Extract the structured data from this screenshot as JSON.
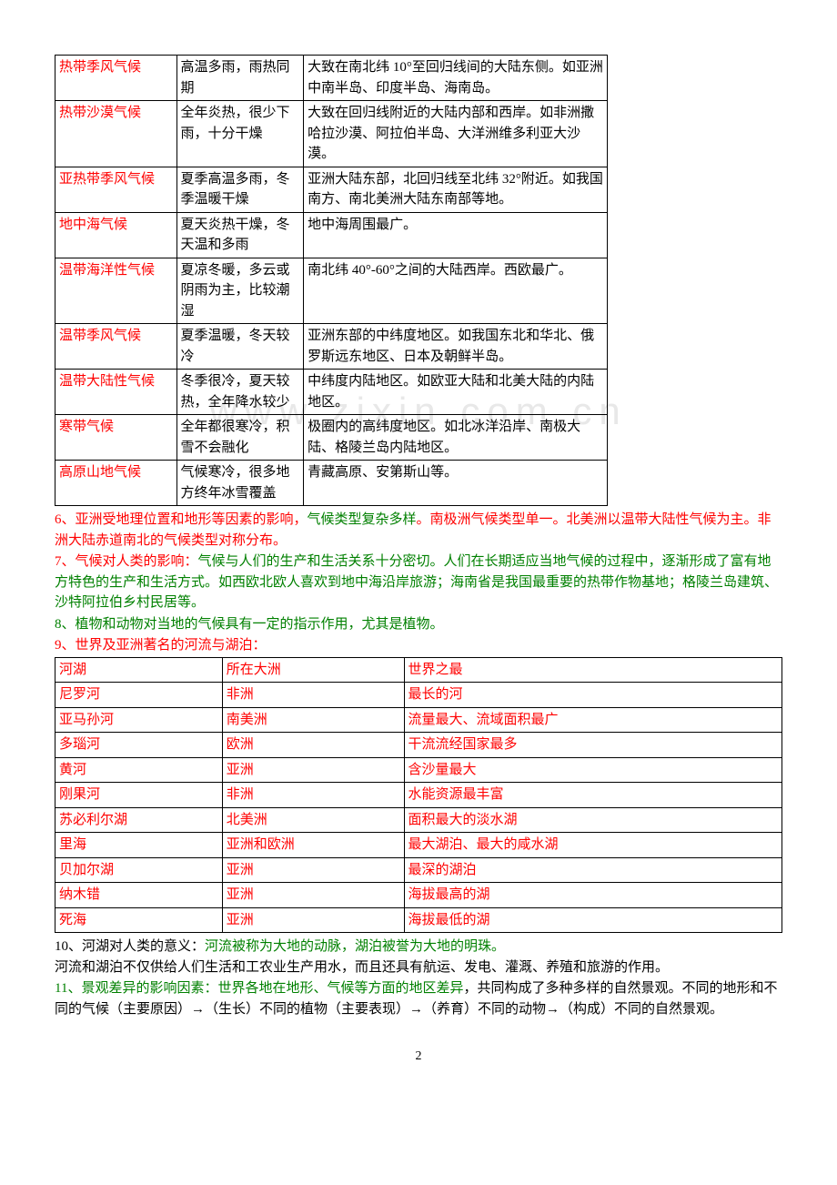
{
  "watermark": "www.zixin.com.cn",
  "table1": {
    "rows": [
      {
        "c1": "热带季风气候",
        "c1_color": "red",
        "c2": "高温多雨，雨热同期",
        "c3": "大致在南北纬 10°至回归线间的大陆东侧。如亚洲中南半岛、印度半岛、海南岛。"
      },
      {
        "c1": "热带沙漠气候",
        "c1_color": "red",
        "c2": "全年炎热，很少下雨，十分干燥",
        "c3": "大致在回归线附近的大陆内部和西岸。如非洲撒哈拉沙漠、阿拉伯半岛、大洋洲维多利亚大沙漠。"
      },
      {
        "c1": "亚热带季风气候",
        "c1_color": "red",
        "c2": "夏季高温多雨，冬季温暖干燥",
        "c3": "亚洲大陆东部，北回归线至北纬 32°附近。如我国南方、南北美洲大陆东南部等地。"
      },
      {
        "c1": "地中海气候",
        "c1_color": "red",
        "c2": "夏天炎热干燥，冬天温和多雨",
        "c3": "地中海周围最广。"
      },
      {
        "c1": "温带海洋性气候",
        "c1_color": "red",
        "c2": "夏凉冬暖，多云或阴雨为主，比较潮湿",
        "c3": "南北纬 40°-60°之间的大陆西岸。西欧最广。"
      },
      {
        "c1": "温带季风气候",
        "c1_color": "red",
        "c2": "夏季温暖，冬天较冷",
        "c3": "亚洲东部的中纬度地区。如我国东北和华北、俄罗斯远东地区、日本及朝鲜半岛。"
      },
      {
        "c1": "温带大陆性气候",
        "c1_color": "red",
        "c2": "冬季很冷，夏天较热，全年降水较少",
        "c3": "中纬度内陆地区。如欧亚大陆和北美大陆的内陆地区。"
      },
      {
        "c1": "寒带气候",
        "c1_color": "red",
        "c2": "全年都很寒冷，积雪不会融化",
        "c3": "极圈内的高纬度地区。如北冰洋沿岸、南极大陆、格陵兰岛内陆地区。"
      },
      {
        "c1": "高原山地气候",
        "c1_color": "red",
        "c2": "气候寒冷，很多地方终年冰雪覆盖",
        "c3": "青藏高原、安第斯山等。"
      }
    ]
  },
  "para6": {
    "prefix": "6、亚洲受地理位置和地形等因素的影响，",
    "mid": "气候类型复杂多样",
    "suffix": "。南极洲气候类型单一。北美洲以温带大陆性气候为主。非洲大陆赤道南北的气候类型对称分布。"
  },
  "para7": {
    "prefix": "7、气候对人类的影响：",
    "body": "气候与人们的生产和生活关系十分密切。人们在长期适应当地气候的过程中，逐渐形成了富有地方特色的生产和生活方式。如西欧北欧人喜欢到地中海沿岸旅游；海南省是我国最重要的热带作物基地；格陵兰岛建筑、沙特阿拉伯乡村民居等。"
  },
  "para8": "8、植物和动物对当地的气候具有一定的指示作用，尤其是植物。",
  "para9": "9、世界及亚洲著名的河流与湖泊：",
  "table2": {
    "header": [
      "河湖",
      "所在大洲",
      "世界之最"
    ],
    "rows": [
      [
        "尼罗河",
        "非洲",
        "最长的河"
      ],
      [
        "亚马孙河",
        "南美洲",
        "流量最大、流域面积最广"
      ],
      [
        "多瑙河",
        "欧洲",
        "干流流经国家最多"
      ],
      [
        "黄河",
        "亚洲",
        "含沙量最大"
      ],
      [
        "刚果河",
        "非洲",
        "水能资源最丰富"
      ],
      [
        "苏必利尔湖",
        "北美洲",
        "面积最大的淡水湖"
      ],
      [
        "里海",
        "亚洲和欧洲",
        "最大湖泊、最大的咸水湖"
      ],
      [
        "贝加尔湖",
        "亚洲",
        "最深的湖泊"
      ],
      [
        "纳木错",
        "亚洲",
        "海拔最高的湖"
      ],
      [
        "死海",
        "亚洲",
        "海拔最低的湖"
      ]
    ]
  },
  "para10": {
    "prefix": "10、河湖对人类的意义：",
    "green": "河流被称为大地的动脉，湖泊被誉为大地的明珠。",
    "body": "河流和湖泊不仅供给人们生活和工农业生产用水，而且还具有航运、发电、灌溉、养殖和旅游的作用。"
  },
  "para11": {
    "prefix": "11、景观差异的影响因素：世界各地在地形、气候等方面的地区差异",
    "suffix": "，共同构成了多种多样的自然景观。不同的地形和不同的气候（主要原因）→（生长）不同的植物（主要表现）→（养育）不同的动物→（构成）不同的自然景观。"
  },
  "page_number": "2"
}
